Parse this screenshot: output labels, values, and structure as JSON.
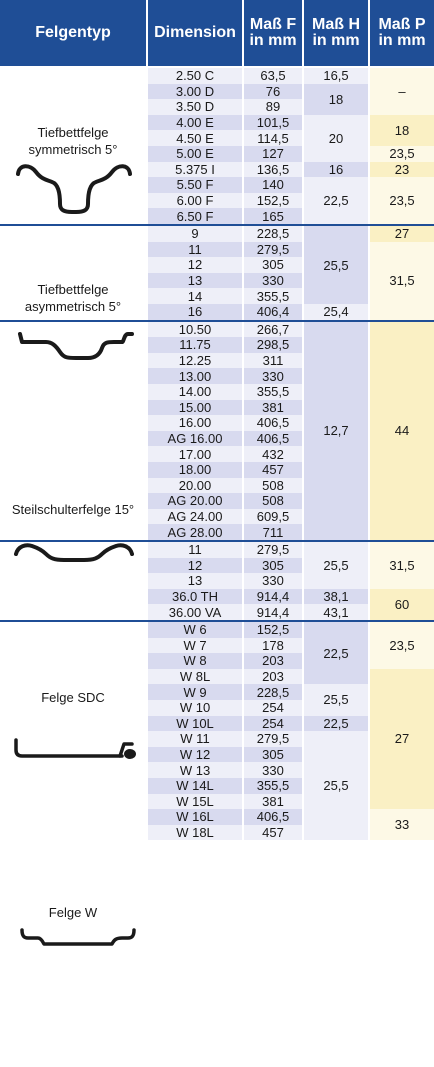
{
  "header": {
    "col_type": "Felgentyp",
    "col_dimension": "Dimension",
    "col_f_line1": "Maß F",
    "col_f_line2": "in mm",
    "col_h_line1": "Maß H",
    "col_h_line2": "in mm",
    "col_p_line1": "Maß P",
    "col_p_line2": "in mm"
  },
  "groups": [
    {
      "name_line1": "Tiefbettfelge",
      "name_line2": "symmetrisch 5°",
      "icon": "rim-profile-symmetric-icon"
    },
    {
      "name_line1": "Tiefbettfelge",
      "name_line2": "asymmetrisch 5°",
      "icon": "rim-profile-asymmetric-icon"
    },
    {
      "name_line1": "Steilschulterfelge 15°",
      "name_line2": "",
      "icon": "rim-profile-steep-shoulder-icon"
    },
    {
      "name_line1": "Felge SDC",
      "name_line2": "",
      "icon": "rim-profile-sdc-icon"
    },
    {
      "name_line1": "Felge W",
      "name_line2": "",
      "icon": "rim-profile-w-icon"
    }
  ],
  "rows": [
    {
      "dimension": "2.50 C",
      "f": "63,5"
    },
    {
      "dimension": "3.00 D",
      "f": "76"
    },
    {
      "dimension": "3.50 D",
      "f": "89"
    },
    {
      "dimension": "4.00 E",
      "f": "101,5"
    },
    {
      "dimension": "4.50 E",
      "f": "114,5"
    },
    {
      "dimension": "5.00 E",
      "f": "127"
    },
    {
      "dimension": "5.375 I",
      "f": "136,5"
    },
    {
      "dimension": "5.50 F",
      "f": "140"
    },
    {
      "dimension": "6.00 F",
      "f": "152,5"
    },
    {
      "dimension": "6.50 F",
      "f": "165"
    },
    {
      "dimension": "9",
      "f": "228,5"
    },
    {
      "dimension": "11",
      "f": "279,5"
    },
    {
      "dimension": "12",
      "f": "305"
    },
    {
      "dimension": "13",
      "f": "330"
    },
    {
      "dimension": "14",
      "f": "355,5"
    },
    {
      "dimension": "16",
      "f": "406,4"
    },
    {
      "dimension": "10.50",
      "f": "266,7"
    },
    {
      "dimension": "11.75",
      "f": "298,5"
    },
    {
      "dimension": "12.25",
      "f": "311"
    },
    {
      "dimension": "13.00",
      "f": "330"
    },
    {
      "dimension": "14.00",
      "f": "355,5"
    },
    {
      "dimension": "15.00",
      "f": "381"
    },
    {
      "dimension": "16.00",
      "f": "406,5"
    },
    {
      "dimension": "AG 16.00",
      "f": "406,5"
    },
    {
      "dimension": "17.00",
      "f": "432"
    },
    {
      "dimension": "18.00",
      "f": "457"
    },
    {
      "dimension": "20.00",
      "f": "508"
    },
    {
      "dimension": "AG 20.00",
      "f": "508"
    },
    {
      "dimension": "AG 24.00",
      "f": "609,5"
    },
    {
      "dimension": "AG 28.00",
      "f": "711"
    },
    {
      "dimension": "11",
      "f": "279,5"
    },
    {
      "dimension": "12",
      "f": "305"
    },
    {
      "dimension": "13",
      "f": "330"
    },
    {
      "dimension": "36.0 TH",
      "f": "914,4"
    },
    {
      "dimension": "36.00 VA",
      "f": "914,4"
    },
    {
      "dimension": "W 6",
      "f": "152,5"
    },
    {
      "dimension": "W 7",
      "f": "178"
    },
    {
      "dimension": "W 8",
      "f": "203"
    },
    {
      "dimension": "W 8L",
      "f": "203"
    },
    {
      "dimension": "W 9",
      "f": "228,5"
    },
    {
      "dimension": "W 10",
      "f": "254"
    },
    {
      "dimension": "W 10L",
      "f": "254"
    },
    {
      "dimension": "W 11",
      "f": "279,5"
    },
    {
      "dimension": "W 12",
      "f": "305"
    },
    {
      "dimension": "W 13",
      "f": "330"
    },
    {
      "dimension": "W 14L",
      "f": "355,5"
    },
    {
      "dimension": "W 15L",
      "f": "381"
    },
    {
      "dimension": "W 16L",
      "f": "406,5"
    },
    {
      "dimension": "W 18L",
      "f": "457"
    }
  ],
  "h_spans": [
    {
      "value": "16,5"
    },
    {
      "value": "18"
    },
    {
      "value": "20"
    },
    {
      "value": "16"
    },
    {
      "value": "22,5"
    },
    {
      "value": "25,5"
    },
    {
      "value": "25,4"
    },
    {
      "value": "12,7"
    },
    {
      "value": "25,5"
    },
    {
      "value": "38,1"
    },
    {
      "value": "43,1"
    },
    {
      "value": "22,5"
    },
    {
      "value": "25,5"
    },
    {
      "value": "22,5"
    },
    {
      "value": "25,5"
    }
  ],
  "p_spans": [
    {
      "value": "–"
    },
    {
      "value": "18"
    },
    {
      "value": "23,5"
    },
    {
      "value": "23"
    },
    {
      "value": "23,5"
    },
    {
      "value": "27"
    },
    {
      "value": "31,5"
    },
    {
      "value": "44"
    },
    {
      "value": "31,5"
    },
    {
      "value": "60"
    },
    {
      "value": "23,5"
    },
    {
      "value": "27"
    },
    {
      "value": "33"
    }
  ],
  "colors": {
    "header_bg": "#1f4e96",
    "header_text": "#ffffff",
    "row_light": "#eeeff8",
    "row_dark": "#d8daef",
    "p_light": "#fdf9e6",
    "p_dark": "#faf0c4",
    "separator": "#1f4e96"
  }
}
